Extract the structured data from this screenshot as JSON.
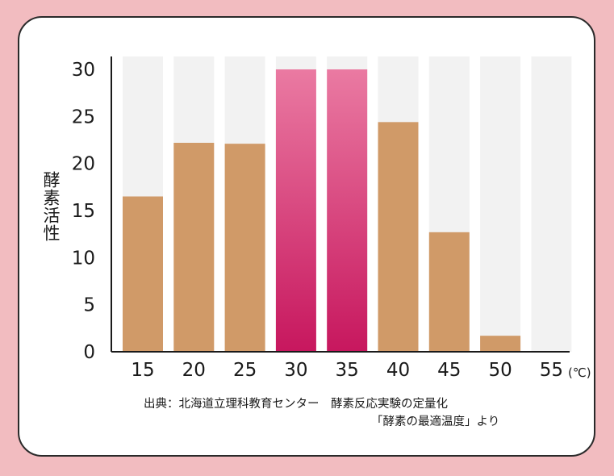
{
  "chart_data": {
    "type": "bar",
    "categories": [
      "15",
      "20",
      "25",
      "30",
      "35",
      "40",
      "45",
      "50",
      "55"
    ],
    "values": [
      16.5,
      22.2,
      22.1,
      30,
      30,
      24.4,
      12.7,
      1.7,
      0
    ],
    "ylabel": "酵素活性",
    "xunit": "(℃)",
    "ylim": [
      0,
      30
    ],
    "yticks": [
      0,
      5,
      10,
      15,
      20,
      25,
      30
    ],
    "highlight": [
      "30",
      "35"
    ],
    "legend": "none",
    "grid": false
  },
  "colors": {
    "bar": "#d09a68",
    "highlight_top": "#ea7aa2",
    "highlight_bottom": "#c7175e",
    "background_track": "#f2f2f2",
    "page_background": "#f2bcc0"
  },
  "source": {
    "line1": "出典：北海道立理科教育センター　酵素反応実験の定量化",
    "line2": "「酵素の最適温度」より"
  }
}
